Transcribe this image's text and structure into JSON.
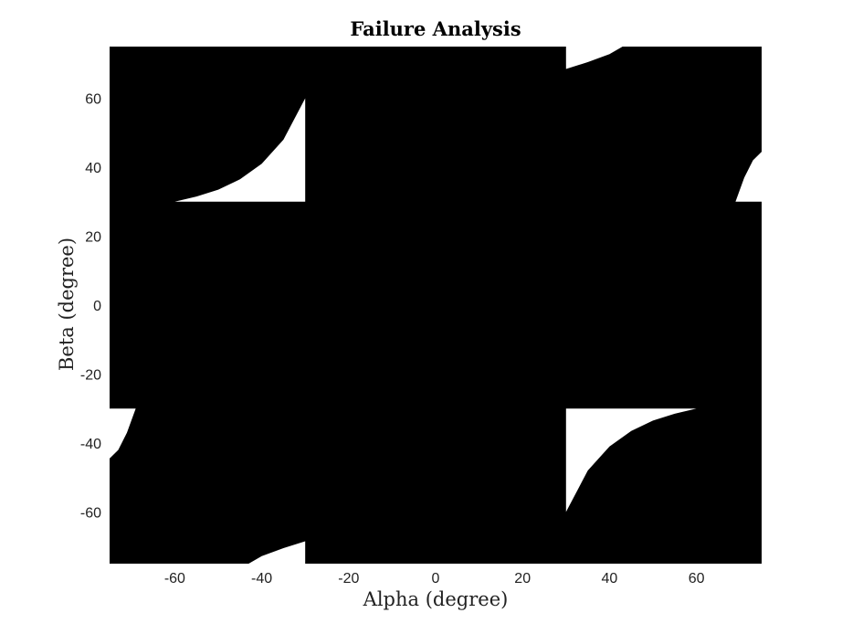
{
  "chart_data": {
    "type": "heatmap",
    "title": "Failure Analysis",
    "xlabel": "Alpha (degree)",
    "ylabel": "Beta (degree)",
    "xlim": [
      -75,
      75
    ],
    "ylim": [
      -75,
      75
    ],
    "xticks": [
      -60,
      -40,
      -20,
      0,
      20,
      40,
      60
    ],
    "yticks": [
      -60,
      -40,
      -20,
      0,
      20,
      40,
      60
    ],
    "colors": {
      "failure": "#000000",
      "safe": "#ffffff"
    },
    "safe_regions": [
      {
        "name": "upper-left",
        "corner": [
          -30,
          30
        ],
        "x": [
          -60,
          -55,
          -50,
          -45,
          -40,
          -35,
          -30
        ],
        "y": [
          30,
          31.5,
          33.5,
          36.5,
          41,
          48,
          60
        ]
      },
      {
        "name": "lower-right",
        "corner": [
          30,
          -30
        ],
        "x": [
          30,
          35,
          40,
          45,
          50,
          55,
          60
        ],
        "y": [
          -60,
          -48,
          -41,
          -36.5,
          -33.5,
          -31.5,
          -30
        ]
      },
      {
        "name": "top-edge",
        "corner": [
          30,
          75
        ],
        "x": [
          30,
          35,
          40,
          43
        ],
        "y": [
          68.5,
          70.5,
          72.8,
          75
        ]
      },
      {
        "name": "bottom-edge",
        "corner": [
          -30,
          -75
        ],
        "x": [
          -43,
          -40,
          -35,
          -30
        ],
        "y": [
          -75,
          -72.8,
          -70.5,
          -68.5
        ]
      },
      {
        "name": "left-edge",
        "corner": [
          -75,
          -30
        ],
        "x": [
          -75,
          -73,
          -71,
          -69
        ],
        "y": [
          -44.5,
          -42,
          -37,
          -30
        ]
      },
      {
        "name": "right-edge",
        "corner": [
          75,
          30
        ],
        "x": [
          69,
          71,
          73,
          75
        ],
        "y": [
          30,
          37,
          42,
          44.5
        ]
      }
    ]
  }
}
